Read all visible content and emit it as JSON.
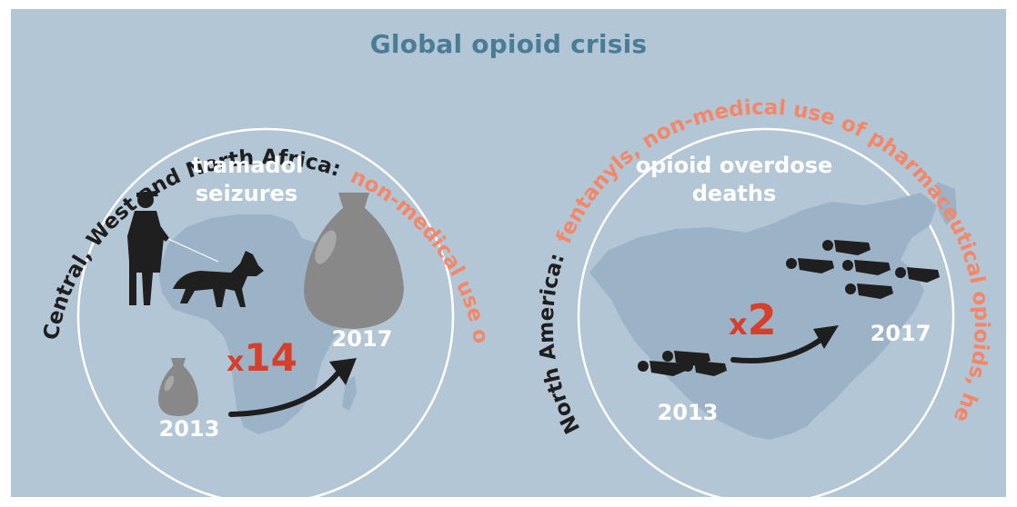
{
  "title": "Global opioid crisis",
  "colors": {
    "background": "#b3c6d6",
    "title": "#4a7c95",
    "salmon": "#f48767",
    "red": "#d6402a",
    "dark": "#1e1e1e",
    "white": "#ffffff"
  },
  "left_panel": {
    "region": "Central, West and North Africa:",
    "issue": "non-medical use of tramadol",
    "label_line1": "tramadol",
    "label_line2": "seizures",
    "year_start": "2013",
    "year_end": "2017",
    "multiplier_prefix": "x",
    "multiplier_value": "14",
    "icons": [
      "africa-map-icon",
      "police-officer-icon",
      "sniffer-dog-icon",
      "small-bag-icon",
      "large-bag-icon",
      "growth-arrow-icon"
    ]
  },
  "right_panel": {
    "region": "North America:",
    "issue": "fentanyls, non-medical use of pharmaceutical opioids, heroin",
    "label_line1": "opioid overdose",
    "label_line2": "deaths",
    "year_start": "2013",
    "year_end": "2017",
    "multiplier_prefix": "x",
    "multiplier_value": "2",
    "icons": [
      "north-america-map-icon",
      "lying-person-icon",
      "growth-arrow-icon"
    ]
  }
}
